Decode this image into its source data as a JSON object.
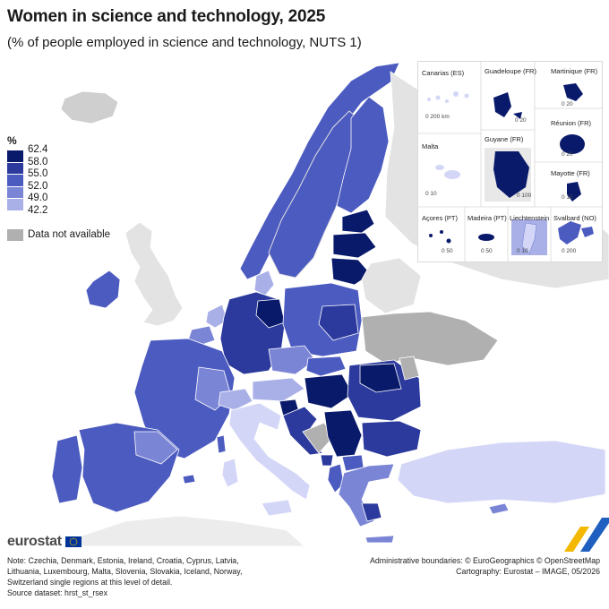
{
  "header": {
    "title": "Women in science and technology, 2025",
    "subtitle": "(% of people employed in science and technology, NUTS 1)"
  },
  "legend": {
    "unit": "%",
    "classes": [
      {
        "label": "62.4",
        "color": "#0a1a6b"
      },
      {
        "label": "58.0",
        "color": "#2b3a9c"
      },
      {
        "label": "55.0",
        "color": "#4c5bc0"
      },
      {
        "label": "52.0",
        "color": "#7b85d6"
      },
      {
        "label": "49.0",
        "color": "#a9b0e8"
      },
      {
        "label": "42.2",
        "color": "#d3d6f6"
      }
    ],
    "not_available_label": "Data not available",
    "not_available_color": "#b0b0b0"
  },
  "insets": {
    "canarias": {
      "label": "Canarias (ES)",
      "scale": "0    200 km"
    },
    "guadeloupe": {
      "label": "Guadeloupe (FR)",
      "scale": "0  20"
    },
    "martinique": {
      "label": "Martinique (FR)",
      "scale": "0  20"
    },
    "reunion": {
      "label": "Réunion (FR)",
      "scale": "0  20"
    },
    "malta": {
      "label": "Malta",
      "scale": "0  10"
    },
    "guyane": {
      "label": "Guyane (FR)",
      "scale": "0   100"
    },
    "mayotte": {
      "label": "Mayotte (FR)",
      "scale": "0  15"
    },
    "acores": {
      "label": "Açores (PT)",
      "scale": "0  50"
    },
    "madeira": {
      "label": "Madeira (PT)",
      "scale": "0  50"
    },
    "liechtenstein": {
      "label": "Liechtenstein",
      "scale": "0  10"
    },
    "svalbard": {
      "label": "Svalbard (NO)",
      "scale": "0    200"
    }
  },
  "footer": {
    "logo": "eurostat",
    "note_lines": [
      "Note: Czechia, Denmark, Estonia, Ireland, Croatia, Cyprus, Latvia,",
      "Lithuania, Luxembourg, Malta, Slovenia, Slovakia, Iceland, Norway,",
      "Switzerland single regions at this level of detail.",
      "Source dataset: hrst_st_rsex"
    ],
    "credits_lines": [
      "Administrative boundaries: © EuroGeographics © OpenStreetMap",
      "Cartography: Eurostat – IMAGE, 05/2026"
    ]
  }
}
